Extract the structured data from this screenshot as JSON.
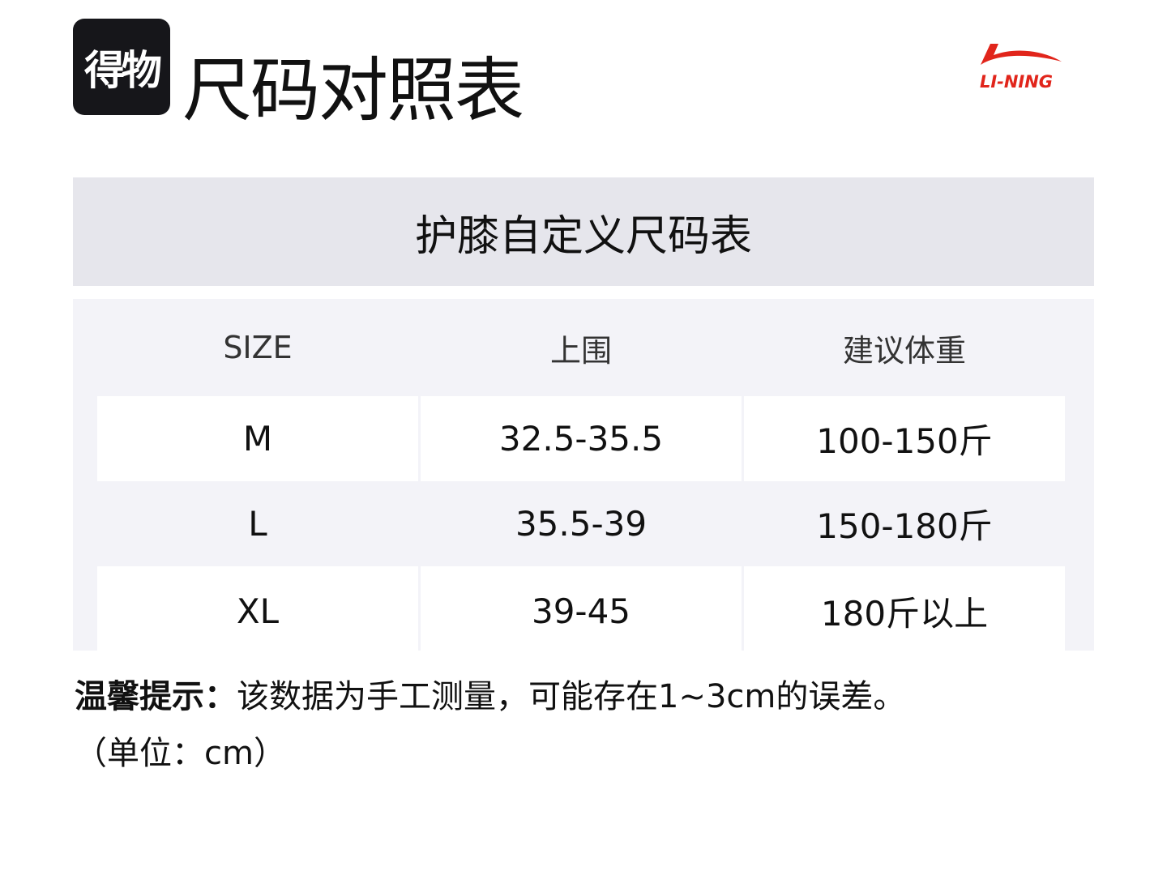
{
  "header": {
    "logo_text": "得物",
    "title": "尺码对照表",
    "brand_logo": "LI-NING",
    "brand_color": "#e1251b"
  },
  "table": {
    "caption": "护膝自定义尺码表",
    "columns": [
      "SIZE",
      "上围",
      "建议体重"
    ],
    "rows": [
      [
        "M",
        "32.5-35.5",
        "100-150斤"
      ],
      [
        "L",
        "35.5-39",
        "150-180斤"
      ],
      [
        "XL",
        "39-45",
        "180斤以上"
      ]
    ]
  },
  "note": {
    "label": "温馨提示：",
    "text": "该数据为手工测量，可能存在1~3cm的误差。",
    "unit": "（单位：cm）"
  }
}
